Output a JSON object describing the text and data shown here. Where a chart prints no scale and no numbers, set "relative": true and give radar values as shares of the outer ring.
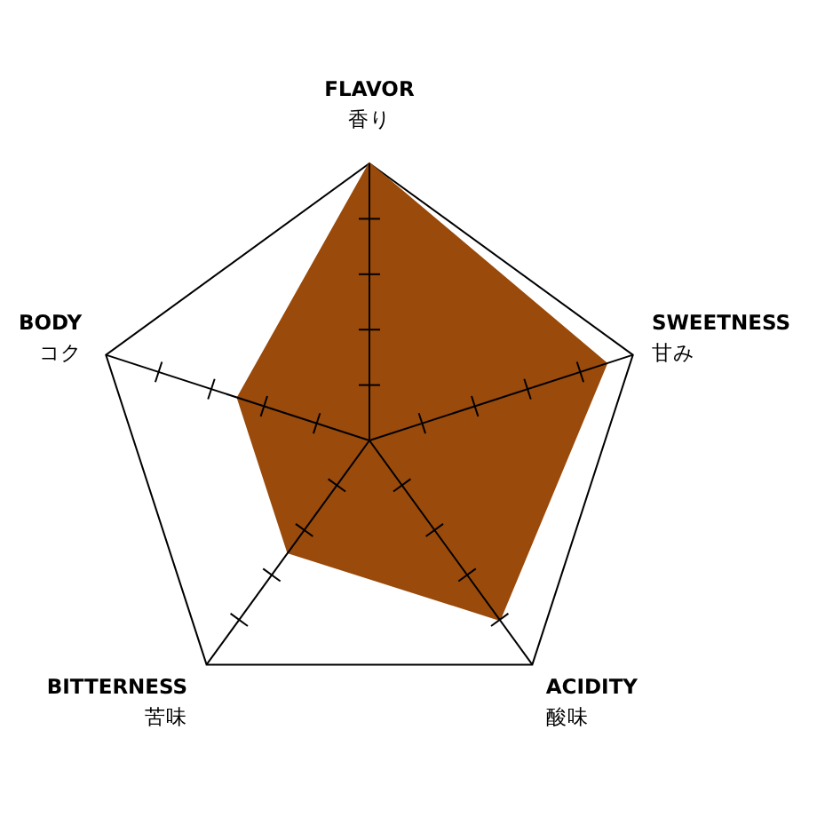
{
  "chart_data": {
    "type": "radar",
    "categories": [
      "FLAVOR\n香り",
      "SWEETNESS\n甘み",
      "ACIDITY\n酸味",
      "BITTERNESS\n苦味",
      "BODY\nコク"
    ],
    "relative": true,
    "series": [
      {
        "color": "#9a4a0a",
        "values": [
          1,
          0.9,
          0.8,
          0.5,
          0.5
        ]
      }
    ],
    "grid": true
  }
}
